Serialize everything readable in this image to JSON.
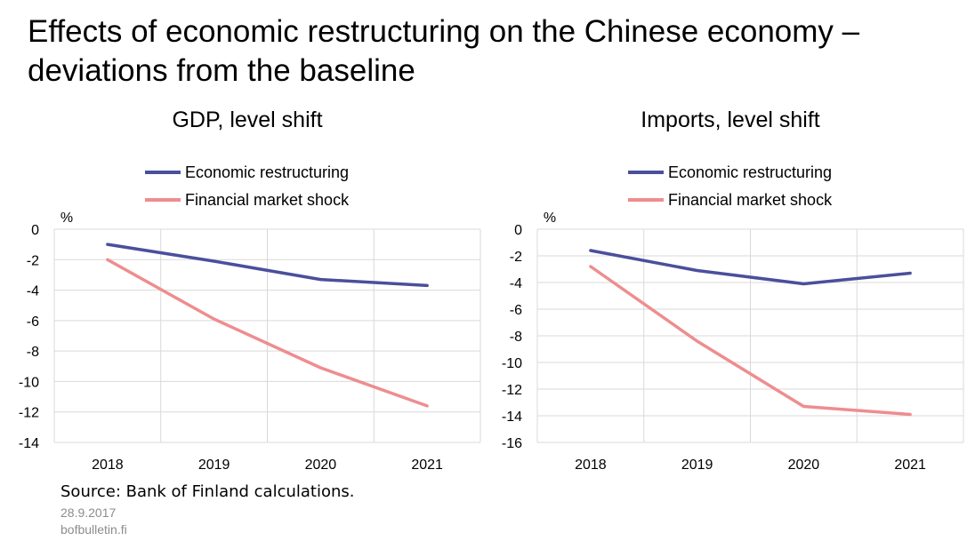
{
  "page": {
    "title": "Effects of economic restructuring on the Chinese economy – deviations from the baseline",
    "source": "Source: Bank of Finland calculations.",
    "date": "28.9.2017",
    "site": "bofbulletin.fi"
  },
  "chart_data": [
    {
      "type": "line",
      "title": "GDP, level shift",
      "unit_label": "%",
      "categories": [
        "2018",
        "2019",
        "2020",
        "2021"
      ],
      "series": [
        {
          "name": "Economic restructuring",
          "color": "#4a4f9c",
          "values": [
            -1.0,
            -2.1,
            -3.3,
            -3.7
          ]
        },
        {
          "name": "Financial market shock",
          "color": "#ee8d8f",
          "values": [
            -2.0,
            -5.9,
            -9.1,
            -11.6
          ]
        }
      ],
      "ylim": [
        -14,
        0
      ],
      "yticks": [
        0,
        -2,
        -4,
        -6,
        -8,
        -10,
        -12,
        -14
      ],
      "grid": true,
      "legend_position": "top"
    },
    {
      "type": "line",
      "title": "Imports, level shift",
      "unit_label": "%",
      "categories": [
        "2018",
        "2019",
        "2020",
        "2021"
      ],
      "series": [
        {
          "name": "Economic restructuring",
          "color": "#4a4f9c",
          "values": [
            -1.6,
            -3.1,
            -4.1,
            -3.3
          ]
        },
        {
          "name": "Financial market shock",
          "color": "#ee8d8f",
          "values": [
            -2.8,
            -8.4,
            -13.3,
            -13.9
          ]
        }
      ],
      "ylim": [
        -16,
        0
      ],
      "yticks": [
        0,
        -2,
        -4,
        -6,
        -8,
        -10,
        -12,
        -14,
        -16
      ],
      "grid": true,
      "legend_position": "top"
    }
  ]
}
